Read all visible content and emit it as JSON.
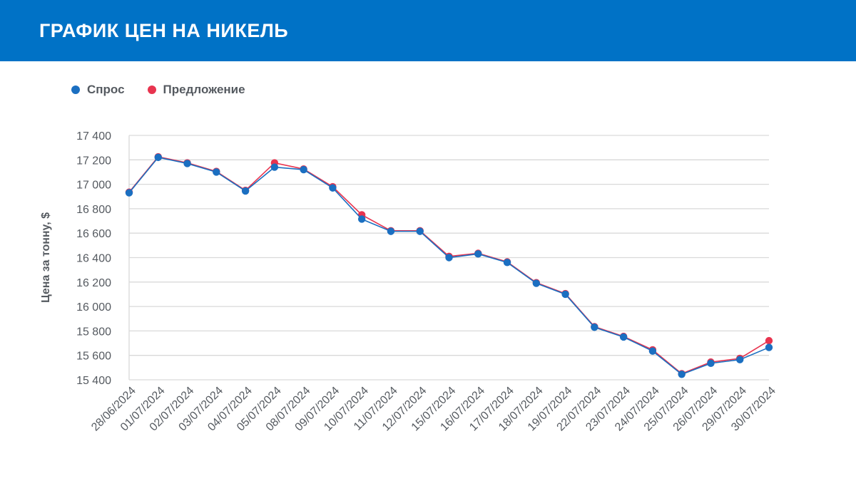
{
  "header": {
    "title": "ГРАФИК ЦЕН НА НИКЕЛЬ"
  },
  "colors": {
    "header_bg": "#0072c6",
    "demand": "#1b6fc1",
    "supply": "#e8344f",
    "grid": "#d9d9d9",
    "text": "#555a60"
  },
  "legend": [
    {
      "label": "Спрос",
      "color": "#1b6fc1"
    },
    {
      "label": "Предложение",
      "color": "#e8344f"
    }
  ],
  "chart_data": {
    "type": "line",
    "title": "ГРАФИК ЦЕН НА НИКЕЛЬ",
    "xlabel": "",
    "ylabel": "Цена за тонну, $",
    "ylim": [
      15400,
      17400
    ],
    "yticks": [
      17400,
      17200,
      17000,
      16800,
      16600,
      16400,
      16200,
      16000,
      15800,
      15600,
      15400
    ],
    "ytick_labels": [
      "17 400",
      "17 200",
      "17 000",
      "16 800",
      "16 600",
      "16 400",
      "16 200",
      "16 000",
      "15 800",
      "15 600",
      "15 400"
    ],
    "grid": true,
    "legend_position": "top-left",
    "x": [
      "28/06/2024",
      "01/07/2024",
      "02/07/2024",
      "03/07/2024",
      "04/07/2024",
      "05/07/2024",
      "08/07/2024",
      "09/07/2024",
      "10/07/2024",
      "11/07/2024",
      "12/07/2024",
      "15/07/2024",
      "16/07/2024",
      "17/07/2024",
      "18/07/2024",
      "19/07/2024",
      "22/07/2024",
      "23/07/2024",
      "24/07/2024",
      "25/07/2024",
      "26/07/2024",
      "29/07/2024",
      "30/07/2024"
    ],
    "series": [
      {
        "name": "Предложение",
        "color": "#e8344f",
        "values": [
          16935,
          17225,
          17175,
          17105,
          16950,
          17175,
          17125,
          16980,
          16750,
          16620,
          16620,
          16410,
          16435,
          16365,
          16195,
          16105,
          15835,
          15755,
          15645,
          15450,
          15545,
          15575,
          15720
        ]
      },
      {
        "name": "Спрос",
        "color": "#1b6fc1",
        "values": [
          16930,
          17220,
          17170,
          17100,
          16945,
          17140,
          17120,
          16970,
          16715,
          16615,
          16615,
          16400,
          16430,
          16360,
          16190,
          16100,
          15830,
          15750,
          15635,
          15445,
          15535,
          15565,
          15665
        ]
      }
    ]
  }
}
